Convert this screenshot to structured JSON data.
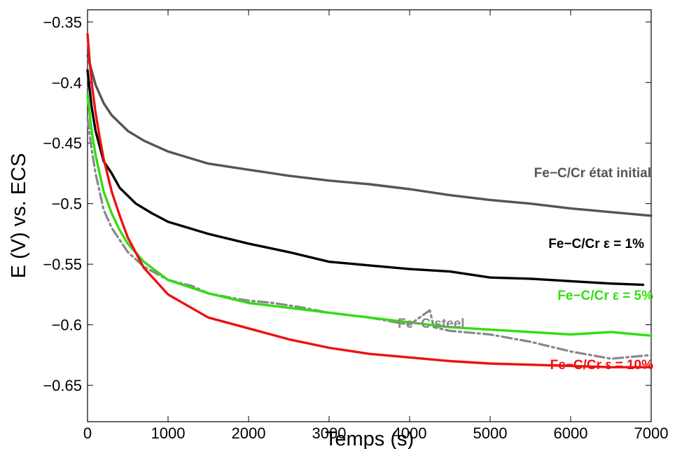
{
  "chart_data": {
    "type": "line",
    "title": "",
    "xlabel": "Temps (s)",
    "ylabel": "E (V) vs. ECS",
    "xlim": [
      0,
      7000
    ],
    "ylim": [
      -0.68,
      -0.34
    ],
    "x_ticks": [
      0,
      1000,
      2000,
      3000,
      4000,
      5000,
      6000,
      7000
    ],
    "y_ticks": [
      -0.35,
      -0.4,
      -0.45,
      -0.5,
      -0.55,
      -0.6,
      -0.65
    ],
    "y_tick_labels": [
      "−0.35",
      "−0.4",
      "−0.45",
      "−0.5",
      "−0.55",
      "−0.6",
      "−0.65"
    ],
    "grid": false,
    "legend": "none (inline labels next to curves)",
    "series": [
      {
        "name": "Fe−C/Cr état initial",
        "color": "#555555",
        "style": "solid",
        "x": [
          0,
          50,
          100,
          200,
          300,
          500,
          700,
          1000,
          1500,
          2000,
          2500,
          3000,
          3500,
          4000,
          4500,
          5000,
          5500,
          6000,
          6500,
          7000
        ],
        "y": [
          -0.378,
          -0.39,
          -0.402,
          -0.417,
          -0.427,
          -0.44,
          -0.448,
          -0.457,
          -0.467,
          -0.472,
          -0.477,
          -0.481,
          -0.484,
          -0.488,
          -0.493,
          -0.497,
          -0.5,
          -0.504,
          -0.507,
          -0.51
        ]
      },
      {
        "name": "Fe−C/Cr ε = 1%",
        "color": "#000000",
        "style": "solid",
        "x": [
          0,
          50,
          100,
          200,
          300,
          400,
          600,
          800,
          1000,
          1500,
          2000,
          2500,
          3000,
          3500,
          4000,
          4500,
          5000,
          5500,
          6000,
          6500,
          6900
        ],
        "y": [
          -0.39,
          -0.42,
          -0.44,
          -0.465,
          -0.475,
          -0.487,
          -0.5,
          -0.508,
          -0.515,
          -0.525,
          -0.533,
          -0.54,
          -0.548,
          -0.551,
          -0.554,
          -0.556,
          -0.561,
          -0.562,
          -0.564,
          -0.566,
          -0.567
        ]
      },
      {
        "name": "Fe−C/Cr  ε = 5%",
        "color": "#33dd11",
        "style": "solid",
        "x": [
          0,
          50,
          100,
          200,
          300,
          400,
          500,
          700,
          1000,
          1500,
          2000,
          2500,
          3000,
          3500,
          4000,
          4500,
          5000,
          5500,
          6000,
          6500,
          7000
        ],
        "y": [
          -0.41,
          -0.44,
          -0.46,
          -0.49,
          -0.508,
          -0.522,
          -0.533,
          -0.548,
          -0.563,
          -0.574,
          -0.582,
          -0.586,
          -0.59,
          -0.594,
          -0.598,
          -0.602,
          -0.604,
          -0.606,
          -0.608,
          -0.606,
          -0.609
        ]
      },
      {
        "name": "Fe−C steel",
        "color": "#888888",
        "style": "dash-dot",
        "x": [
          0,
          50,
          100,
          150,
          200,
          300,
          400,
          500,
          700,
          1000,
          1300,
          1500,
          1800,
          2000,
          2300,
          2600,
          3000,
          3500,
          4000,
          4250,
          4300,
          4500,
          5000,
          5500,
          6000,
          6500,
          7000
        ],
        "y": [
          -0.43,
          -0.455,
          -0.475,
          -0.49,
          -0.505,
          -0.52,
          -0.53,
          -0.54,
          -0.552,
          -0.563,
          -0.568,
          -0.574,
          -0.578,
          -0.58,
          -0.582,
          -0.585,
          -0.59,
          -0.594,
          -0.6,
          -0.588,
          -0.602,
          -0.605,
          -0.608,
          -0.614,
          -0.622,
          -0.628,
          -0.625
        ]
      },
      {
        "name": "Fe−C/Cr ε = 10%",
        "color": "#ee1111",
        "style": "solid",
        "x": [
          0,
          30,
          60,
          100,
          150,
          200,
          300,
          400,
          500,
          700,
          1000,
          1500,
          2000,
          2500,
          3000,
          3500,
          4000,
          4500,
          5000,
          5500,
          6000,
          6500,
          7000
        ],
        "y": [
          -0.36,
          -0.385,
          -0.405,
          -0.425,
          -0.445,
          -0.463,
          -0.49,
          -0.51,
          -0.528,
          -0.553,
          -0.575,
          -0.594,
          -0.603,
          -0.612,
          -0.619,
          -0.624,
          -0.627,
          -0.63,
          -0.632,
          -0.633,
          -0.634,
          -0.635,
          -0.635
        ]
      }
    ]
  }
}
